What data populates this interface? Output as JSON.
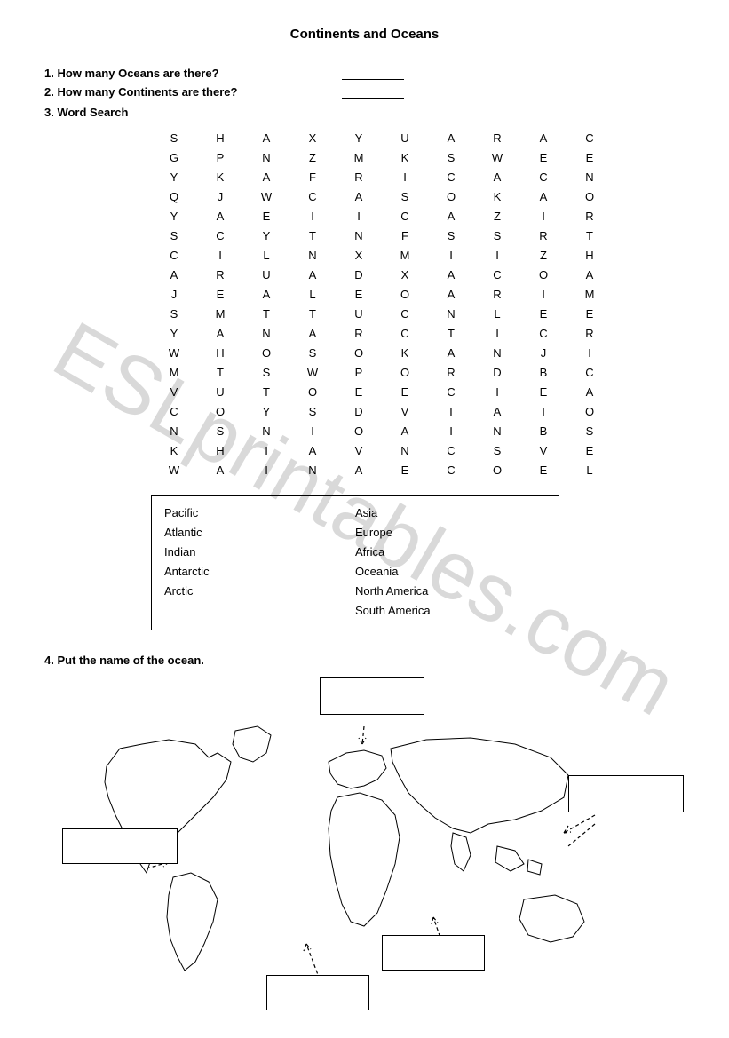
{
  "title": "Continents and Oceans",
  "q1": "1. How many Oceans are there?",
  "q2": "2. How many Continents are there?",
  "q3": "3. Word Search",
  "q4": "4. Put the name of the ocean.",
  "watermark": "ESLprintables.com",
  "grid": {
    "rows": [
      [
        "S",
        "H",
        "A",
        "X",
        "Y",
        "U",
        "A",
        "R",
        "A",
        "C"
      ],
      [
        "G",
        "P",
        "N",
        "Z",
        "M",
        "K",
        "S",
        "W",
        "E",
        "E"
      ],
      [
        "Y",
        "K",
        "A",
        "F",
        "R",
        "I",
        "C",
        "A",
        "C",
        "N"
      ],
      [
        "Q",
        "J",
        "W",
        "C",
        "A",
        "S",
        "O",
        "K",
        "A",
        "O"
      ],
      [
        "Y",
        "A",
        "E",
        "I",
        "I",
        "C",
        "A",
        "Z",
        "I",
        "R"
      ],
      [
        "S",
        "C",
        "Y",
        "T",
        "N",
        "F",
        "S",
        "S",
        "R",
        "T"
      ],
      [
        "C",
        "I",
        "L",
        "N",
        "X",
        "M",
        "I",
        "I",
        "Z",
        "H"
      ],
      [
        "A",
        "R",
        "U",
        "A",
        "D",
        "X",
        "A",
        "C",
        "O",
        "A"
      ],
      [
        "J",
        "E",
        "A",
        "L",
        "E",
        "O",
        "A",
        "R",
        "I",
        "M"
      ],
      [
        "S",
        "M",
        "T",
        "T",
        "U",
        "C",
        "N",
        "L",
        "E",
        "E"
      ],
      [
        "Y",
        "A",
        "N",
        "A",
        "R",
        "C",
        "T",
        "I",
        "C",
        "R"
      ],
      [
        "W",
        "H",
        "O",
        "S",
        "O",
        "K",
        "A",
        "N",
        "J",
        "I"
      ],
      [
        "M",
        "T",
        "S",
        "W",
        "P",
        "O",
        "R",
        "D",
        "B",
        "C"
      ],
      [
        "V",
        "U",
        "T",
        "O",
        "E",
        "E",
        "C",
        "I",
        "E",
        "A"
      ],
      [
        "C",
        "O",
        "Y",
        "S",
        "D",
        "V",
        "T",
        "A",
        "I",
        "O"
      ],
      [
        "N",
        "S",
        "N",
        "I",
        "O",
        "A",
        "I",
        "N",
        "B",
        "S"
      ],
      [
        "K",
        "H",
        "I",
        "A",
        "V",
        "N",
        "C",
        "S",
        "V",
        "E"
      ],
      [
        "W",
        "A",
        "I",
        "N",
        "A",
        "E",
        "C",
        "O",
        "E",
        "L"
      ]
    ]
  },
  "word_box": {
    "col1": [
      "Pacific",
      "Atlantic",
      "Indian",
      "Antarctic",
      "Arctic"
    ],
    "col2": [
      "Asia",
      "Europe",
      "Africa",
      "Oceania",
      "North America",
      "South America"
    ]
  },
  "map": {
    "stroke": "#000000",
    "stroke_width": 1,
    "label_boxes": [
      "top",
      "right",
      "left",
      "mid",
      "bottom"
    ]
  }
}
